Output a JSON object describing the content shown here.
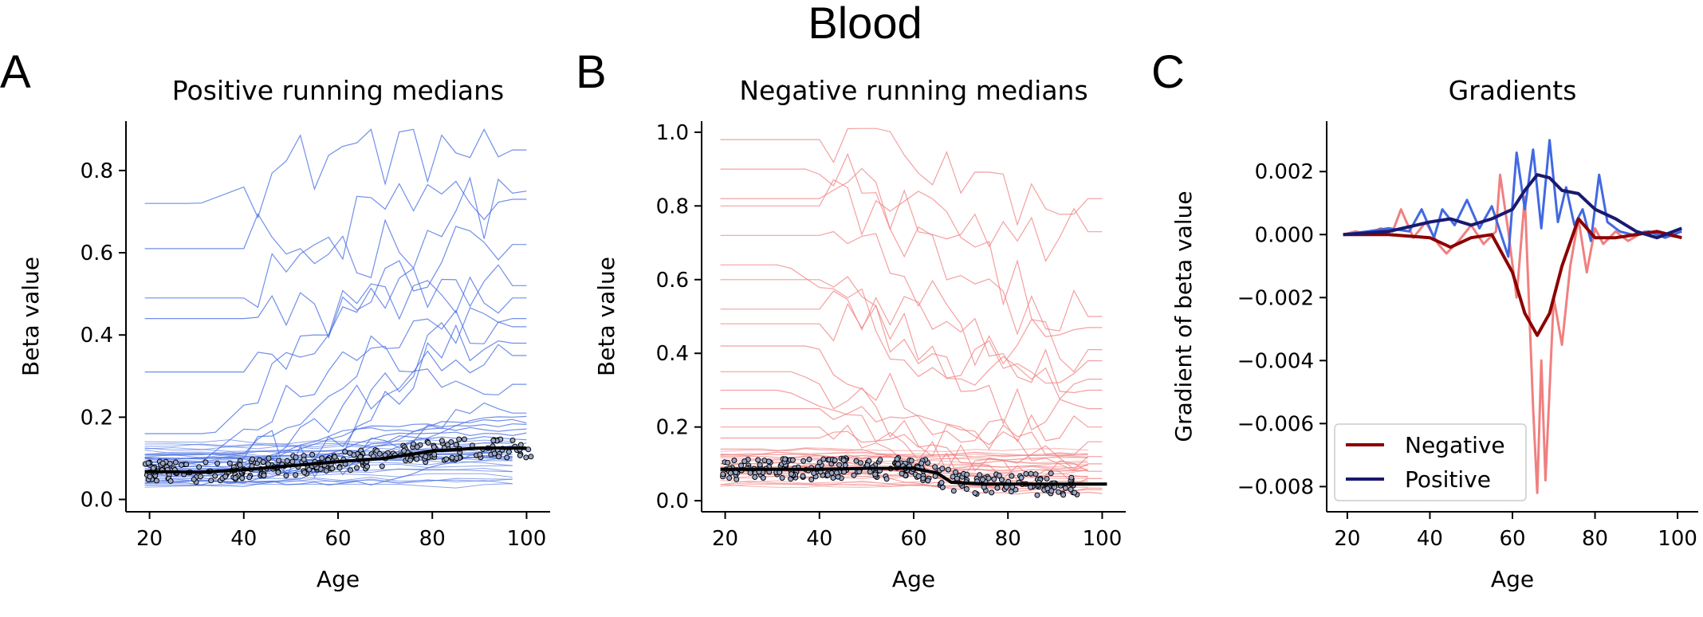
{
  "figure": {
    "suptitle": "Blood"
  },
  "chart_data": [
    {
      "panel": "A",
      "type": "line",
      "title": "Positive running medians",
      "xlabel": "Age",
      "ylabel": "Beta value",
      "xlim": [
        15,
        105
      ],
      "ylim": [
        -0.03,
        0.92
      ],
      "xticks": [
        20,
        40,
        60,
        80,
        100
      ],
      "yticks": [
        0.0,
        0.2,
        0.4,
        0.6,
        0.8
      ],
      "ytick_labels": [
        "0.0",
        "0.2",
        "0.4",
        "0.6",
        "0.8"
      ],
      "grid": false,
      "line_color": "#4169e1",
      "median_color": "#000000",
      "background_series_levels": [
        0.72,
        0.61,
        0.49,
        0.44,
        0.31,
        0.16,
        0.11,
        0.1,
        0.09,
        0.085,
        0.08,
        0.075,
        0.07,
        0.065,
        0.06,
        0.055,
        0.05,
        0.045,
        0.04,
        0.035
      ],
      "background_series_end_levels": [
        0.85,
        0.75,
        0.73,
        0.62,
        0.52,
        0.49,
        0.44,
        0.42,
        0.38,
        0.35,
        0.28,
        0.21,
        0.2,
        0.19,
        0.18,
        0.17,
        0.16,
        0.15,
        0.14,
        0.12
      ],
      "median_line": {
        "x": [
          19,
          30,
          40,
          50,
          60,
          70,
          80,
          90,
          100
        ],
        "y": [
          0.068,
          0.066,
          0.072,
          0.082,
          0.092,
          0.1,
          0.118,
          0.125,
          0.125
        ]
      },
      "scatter_range": {
        "x": [
          19,
          101
        ],
        "y_center": "median_line",
        "spread": 0.025
      }
    },
    {
      "panel": "B",
      "type": "line",
      "title": "Negative running medians",
      "xlabel": "Age",
      "ylabel": "Beta value",
      "xlim": [
        15,
        105
      ],
      "ylim": [
        -0.03,
        1.03
      ],
      "xticks": [
        20,
        40,
        60,
        80,
        100
      ],
      "yticks": [
        0.0,
        0.2,
        0.4,
        0.6,
        0.8,
        1.0
      ],
      "ytick_labels": [
        "0.0",
        "0.2",
        "0.4",
        "0.6",
        "0.8",
        "1.0"
      ],
      "grid": false,
      "line_color": "#f08080",
      "median_color": "#000000",
      "background_series_levels": [
        0.98,
        0.9,
        0.82,
        0.8,
        0.72,
        0.64,
        0.6,
        0.52,
        0.48,
        0.42,
        0.35,
        0.3,
        0.25,
        0.2,
        0.17,
        0.14,
        0.12,
        0.1,
        0.09,
        0.08
      ],
      "background_series_end_levels": [
        0.82,
        0.73,
        0.5,
        0.47,
        0.41,
        0.38,
        0.33,
        0.3,
        0.25,
        0.2,
        0.16,
        0.12,
        0.1,
        0.08,
        0.06,
        0.05,
        0.04,
        0.03,
        0.03,
        0.02
      ],
      "median_line": {
        "x": [
          19,
          30,
          40,
          50,
          60,
          65,
          68,
          75,
          90,
          101
        ],
        "y": [
          0.085,
          0.085,
          0.085,
          0.088,
          0.088,
          0.075,
          0.05,
          0.045,
          0.045,
          0.045
        ]
      },
      "scatter_range": {
        "x": [
          19,
          95
        ],
        "y_center": "median_line",
        "spread": 0.03
      }
    },
    {
      "panel": "C",
      "type": "line",
      "title": "Gradients",
      "xlabel": "Age",
      "ylabel": "Gradient of beta value",
      "xlim": [
        15,
        105
      ],
      "ylim": [
        -0.0088,
        0.0036
      ],
      "xticks": [
        20,
        40,
        60,
        80,
        100
      ],
      "yticks": [
        0.002,
        0.0,
        -0.002,
        -0.004,
        -0.006,
        -0.008
      ],
      "ytick_labels": [
        "0.002",
        "0.000",
        "−0.002",
        "−0.004",
        "−0.006",
        "−0.008"
      ],
      "grid": false,
      "legend": {
        "placement": "lower-left",
        "entries": [
          "Negative",
          "Positive"
        ]
      },
      "series": [
        {
          "name": "Negative",
          "color": "#8b0000",
          "role": "smooth",
          "x": [
            19,
            30,
            40,
            45,
            50,
            55,
            60,
            63,
            66,
            69,
            72,
            76,
            80,
            85,
            90,
            95,
            101
          ],
          "y": [
            0.0,
            0.0,
            -0.0001,
            -0.0004,
            -0.0001,
            0.0,
            -0.0012,
            -0.0025,
            -0.0032,
            -0.0025,
            -0.001,
            0.0005,
            -0.0001,
            -0.0001,
            0.0,
            0.0001,
            -0.0001
          ]
        },
        {
          "name": "Positive",
          "color": "#191970",
          "role": "smooth",
          "x": [
            19,
            30,
            40,
            45,
            50,
            55,
            60,
            63,
            66,
            69,
            72,
            76,
            80,
            85,
            90,
            95,
            101
          ],
          "y": [
            0.0,
            0.0001,
            0.0004,
            0.0005,
            0.0003,
            0.0005,
            0.0008,
            0.0014,
            0.0019,
            0.0018,
            0.0014,
            0.0013,
            0.0008,
            0.0005,
            0.0001,
            -0.0001,
            0.0002
          ]
        },
        {
          "name": "Negative raw",
          "color": "#f08080",
          "role": "raw",
          "x": [
            19,
            22,
            25,
            28,
            31,
            33,
            36,
            39,
            42,
            44,
            47,
            50,
            53,
            56,
            57,
            59,
            61,
            63,
            65,
            66,
            67,
            68,
            70,
            72,
            74,
            76,
            78,
            80,
            82,
            85,
            88,
            92,
            96,
            101
          ],
          "y": [
            0.0,
            0.0001,
            0.0,
            0.0002,
            0.0001,
            0.0008,
            -0.0001,
            0.0004,
            -0.0003,
            -0.0006,
            -0.0002,
            0.0003,
            -0.0003,
            0.0001,
            0.0019,
            0.0001,
            -0.002,
            0.0012,
            -0.0055,
            -0.0082,
            -0.004,
            -0.0078,
            -0.002,
            -0.0035,
            -0.001,
            0.0005,
            -0.0012,
            0.0002,
            -0.0003,
            0.0001,
            -0.0002,
            0.0001,
            0.0,
            -0.0001
          ]
        },
        {
          "name": "Positive raw",
          "color": "#4169e1",
          "role": "raw",
          "x": [
            19,
            25,
            30,
            35,
            38,
            41,
            43,
            46,
            49,
            52,
            55,
            57,
            59,
            61,
            63,
            65,
            67,
            69,
            71,
            73,
            75,
            77,
            79,
            81,
            83,
            86,
            89,
            93,
            97,
            101
          ],
          "y": [
            0.0,
            0.0001,
            0.0002,
            0.0001,
            0.0008,
            -0.0001,
            0.0008,
            0.0003,
            0.0011,
            0.0002,
            0.0009,
            0.0001,
            -0.0007,
            0.0026,
            0.0008,
            0.0027,
            0.0002,
            0.003,
            0.0004,
            0.0015,
            0.0003,
            0.0008,
            -0.0002,
            0.0019,
            0.0004,
            0.0001,
            0.0,
            0.0001,
            -0.0001,
            0.0001
          ]
        }
      ]
    }
  ]
}
